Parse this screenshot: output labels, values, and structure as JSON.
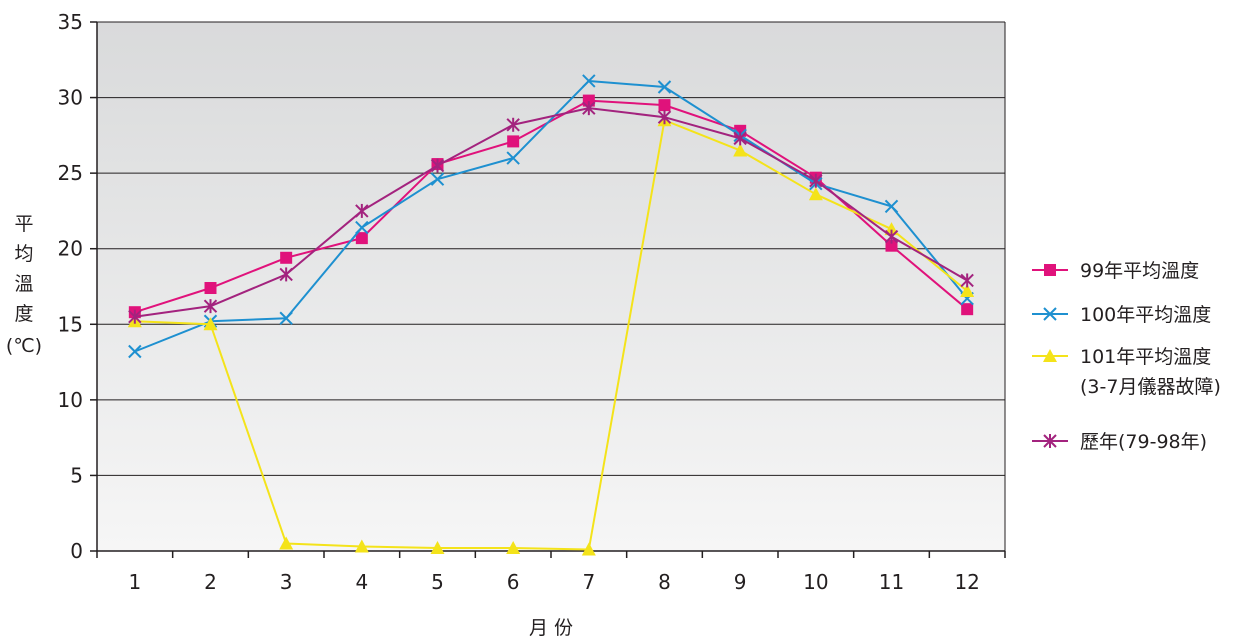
{
  "chart_data": {
    "type": "line",
    "ylabel": "平均溫度(℃)",
    "ylabel_chars": [
      "平",
      "均",
      "溫",
      "度",
      "(℃)"
    ],
    "xlabel": "月 份",
    "categories": [
      "1",
      "2",
      "3",
      "4",
      "5",
      "6",
      "7",
      "8",
      "9",
      "10",
      "11",
      "12"
    ],
    "x": [
      1,
      2,
      3,
      4,
      5,
      6,
      7,
      8,
      9,
      10,
      11,
      12
    ],
    "ylim": [
      0,
      35
    ],
    "yticks": [
      0,
      5,
      10,
      15,
      20,
      25,
      30,
      35
    ],
    "grid": true,
    "legend_position": "right",
    "series": [
      {
        "name": "99年平均溫度",
        "marker": "square",
        "color": "#e0127b",
        "values": [
          15.8,
          17.4,
          19.4,
          20.7,
          25.6,
          27.1,
          29.8,
          29.5,
          27.8,
          24.7,
          20.2,
          16.0
        ]
      },
      {
        "name": "100年平均溫度",
        "marker": "x",
        "color": "#1e90d0",
        "values": [
          13.2,
          15.2,
          15.4,
          21.4,
          24.6,
          26.0,
          31.1,
          30.7,
          27.5,
          24.3,
          22.8,
          16.7
        ]
      },
      {
        "name": "101年平均溫度",
        "name_line2": "(3-7月儀器故障)",
        "marker": "triangle",
        "color": "#f4e31a",
        "values": [
          15.2,
          15.0,
          0.5,
          0.3,
          0.2,
          0.2,
          0.1,
          28.5,
          26.5,
          23.6,
          21.3,
          17.2
        ]
      },
      {
        "name": "歷年(79-98年)",
        "marker": "asterisk",
        "color": "#a3237e",
        "values": [
          15.5,
          16.2,
          18.3,
          22.5,
          25.5,
          28.2,
          29.3,
          28.7,
          27.3,
          24.5,
          20.8,
          17.9
        ]
      }
    ]
  }
}
